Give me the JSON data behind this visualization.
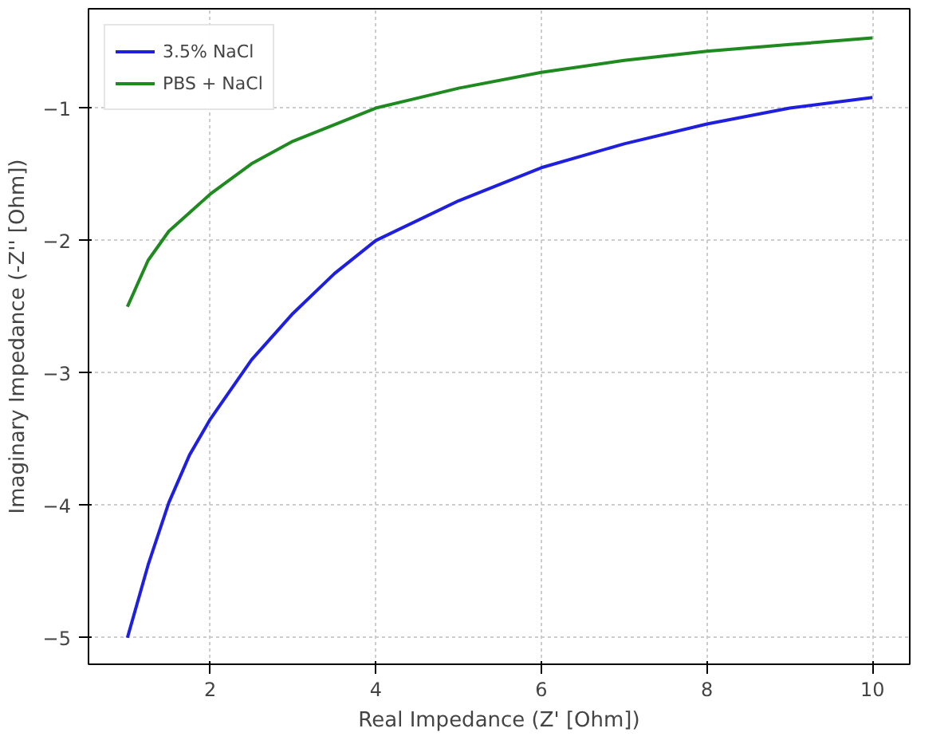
{
  "chart_data": {
    "type": "line",
    "xlabel": "Real Impedance (Z' [Ohm])",
    "ylabel": "Imaginary Impedance (-Z'' [Ohm])",
    "series": [
      {
        "name": "3.5% NaCl",
        "color": "#1f1fdf",
        "x": [
          1,
          1.25,
          1.5,
          1.75,
          2,
          2.5,
          3,
          3.5,
          4,
          5,
          6,
          7,
          8,
          9,
          10
        ],
        "values": [
          -5.0,
          -4.45,
          -3.98,
          -3.62,
          -3.35,
          -2.9,
          -2.55,
          -2.25,
          -2.0,
          -1.7,
          -1.45,
          -1.27,
          -1.12,
          -1.0,
          -0.92
        ]
      },
      {
        "name": "PBS + NaCl",
        "color": "#1f8a1f",
        "x": [
          1,
          1.25,
          1.5,
          2,
          2.5,
          3,
          4,
          5,
          6,
          7,
          8,
          9,
          10
        ],
        "values": [
          -2.5,
          -2.15,
          -1.93,
          -1.65,
          -1.42,
          -1.25,
          -1.0,
          -0.85,
          -0.73,
          -0.64,
          -0.57,
          -0.52,
          -0.47
        ]
      }
    ],
    "xlim": [
      0.53,
      10.45
    ],
    "ylim": [
      -5.2,
      -0.25
    ],
    "xticks": [
      2,
      4,
      6,
      8,
      10
    ],
    "yticks": [
      {
        "value": -5,
        "label": "−5"
      },
      {
        "value": -4,
        "label": "−4"
      },
      {
        "value": -3,
        "label": "−3"
      },
      {
        "value": -2,
        "label": "−2"
      },
      {
        "value": -1,
        "label": "−1"
      }
    ],
    "grid": true,
    "legend": "top left",
    "marker": "none",
    "line_style": "solid"
  }
}
